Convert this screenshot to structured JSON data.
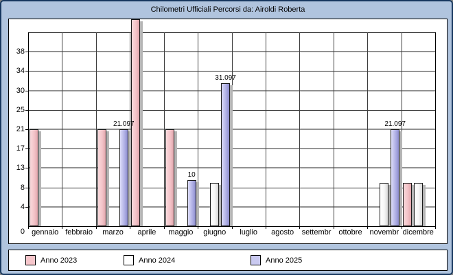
{
  "window": {
    "title": "Chilometri Ufficiali Percorsi da: Airoldi Roberta",
    "background_color": "#b0c4de",
    "border_color": "#17375e"
  },
  "legend": {
    "items": [
      {
        "label": "Anno 2023",
        "swatch_color": "#f6c6cb"
      },
      {
        "label": "Anno 2024",
        "swatch_color": "#ffffff"
      },
      {
        "label": "Anno 2025",
        "swatch_color": "#c9c9f0"
      }
    ]
  },
  "chart_data": {
    "type": "bar",
    "title": "Chilometri Ufficiali Percorsi da: Airoldi Roberta",
    "xlabel": "",
    "ylabel": "",
    "categories": [
      "gennaio",
      "febbraio",
      "marzo",
      "aprile",
      "maggio",
      "giugno",
      "luglio",
      "agosto",
      "settembr",
      "ottobre",
      "novembr",
      "dicembre"
    ],
    "y_tick_labels": [
      "0",
      "4",
      "8",
      "13",
      "17",
      "21",
      "25",
      "30",
      "34",
      "38"
    ],
    "ylim": [
      0,
      42.194
    ],
    "grid": "horizontal alternating gray/black + vertical month separators",
    "legend_position": "bottom",
    "notes": "aprile Anno-2023 bar exceeds the y-axis maximum and is clipped at the top of the plot box (estimated >= 45); value labels are shown only for the Anno 2025 series",
    "series": [
      {
        "name": "Anno 2023",
        "fill_light": "#f9d9dc",
        "fill_mid": "#f3c3c8",
        "fill_dark": "#e2a7ae",
        "values": [
          21.097,
          null,
          21.097,
          45,
          21.097,
          null,
          null,
          null,
          null,
          null,
          null,
          9.5
        ],
        "labels": [
          null,
          null,
          null,
          null,
          null,
          null,
          null,
          null,
          null,
          null,
          null,
          null
        ],
        "clipped": [
          false,
          false,
          false,
          true,
          false,
          false,
          false,
          false,
          false,
          false,
          false,
          false
        ]
      },
      {
        "name": "Anno 2024",
        "fill_light": "#ffffff",
        "fill_mid": "#f6f6f6",
        "fill_dark": "#d8d8d8",
        "values": [
          null,
          null,
          null,
          null,
          null,
          9.5,
          null,
          null,
          null,
          null,
          9.5,
          9.5
        ],
        "labels": [
          null,
          null,
          null,
          null,
          null,
          null,
          null,
          null,
          null,
          null,
          null,
          null
        ],
        "clipped": [
          false,
          false,
          false,
          false,
          false,
          false,
          false,
          false,
          false,
          false,
          false,
          false
        ]
      },
      {
        "name": "Anno 2025",
        "fill_light": "#dcdcf8",
        "fill_mid": "#b2b2e6",
        "fill_dark": "#8e8ed0",
        "values": [
          null,
          null,
          21.097,
          null,
          10,
          31.097,
          null,
          null,
          null,
          null,
          21.097,
          null
        ],
        "labels": [
          null,
          null,
          "21.097",
          null,
          "10",
          "31.097",
          null,
          null,
          null,
          null,
          "21.097",
          null
        ],
        "clipped": [
          false,
          false,
          false,
          false,
          false,
          false,
          false,
          false,
          false,
          false,
          false,
          false
        ]
      }
    ]
  }
}
